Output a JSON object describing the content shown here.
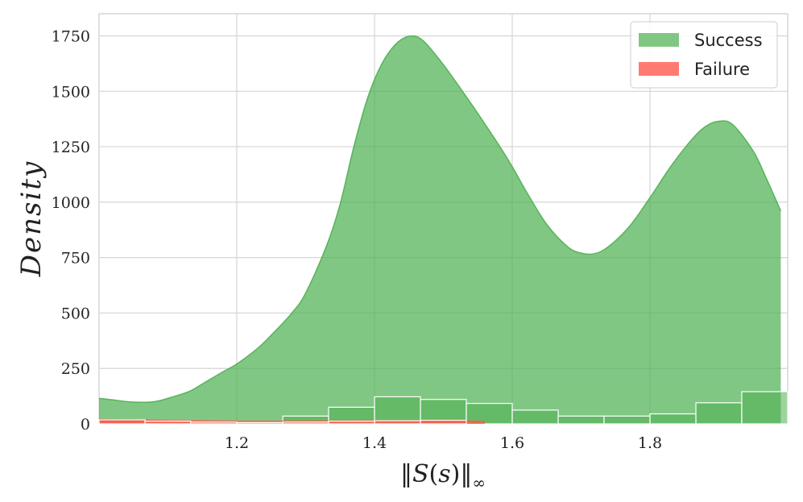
{
  "chart_data": {
    "type": "area",
    "xlabel_parts": [
      "‖",
      "S",
      "(",
      "s",
      ")",
      "‖",
      "∞"
    ],
    "ylabel": "Density",
    "xlim": [
      1.0,
      2.0
    ],
    "ylim": [
      0,
      1850
    ],
    "xticks": [
      1.2,
      1.4,
      1.6,
      1.8
    ],
    "xtick_labels": [
      "1.2",
      "1.4",
      "1.6",
      "1.8"
    ],
    "yticks": [
      0,
      250,
      500,
      750,
      1000,
      1250,
      1500,
      1750
    ],
    "ytick_labels": [
      "0",
      "250",
      "500",
      "750",
      "1000",
      "1250",
      "1500",
      "1750"
    ],
    "grid": true,
    "legend_position": "top-right",
    "series": [
      {
        "name": "Success",
        "color": "#4caf50",
        "kde": {
          "x": [
            1.0,
            1.02,
            1.05,
            1.08,
            1.1,
            1.13,
            1.15,
            1.18,
            1.2,
            1.23,
            1.25,
            1.28,
            1.3,
            1.33,
            1.35,
            1.37,
            1.39,
            1.41,
            1.43,
            1.45,
            1.47,
            1.5,
            1.53,
            1.55,
            1.58,
            1.6,
            1.62,
            1.65,
            1.68,
            1.7,
            1.72,
            1.74,
            1.77,
            1.8,
            1.83,
            1.86,
            1.88,
            1.9,
            1.92,
            1.95,
            1.97,
            1.99
          ],
          "y": [
            115,
            108,
            98,
            100,
            115,
            145,
            180,
            235,
            270,
            340,
            400,
            500,
            590,
            800,
            990,
            1250,
            1470,
            1620,
            1710,
            1748,
            1730,
            1620,
            1490,
            1400,
            1260,
            1160,
            1050,
            900,
            800,
            770,
            768,
            800,
            890,
            1020,
            1160,
            1280,
            1340,
            1365,
            1350,
            1230,
            1100,
            960
          ]
        },
        "hist": {
          "bin_edges": [
            1.0,
            1.0667,
            1.1333,
            1.2,
            1.2667,
            1.3333,
            1.4,
            1.4667,
            1.5333,
            1.6,
            1.6667,
            1.7333,
            1.8,
            1.8667,
            1.9333,
            2.0
          ],
          "counts": [
            0,
            0,
            0,
            0,
            35,
            75,
            122,
            110,
            92,
            62,
            35,
            35,
            45,
            95,
            145
          ]
        }
      },
      {
        "name": "Failure",
        "color": "#ff5a4d",
        "kde": {
          "x": [
            1.0,
            1.05,
            1.1,
            1.2,
            1.3,
            1.4,
            1.5,
            1.56
          ],
          "y": [
            20,
            18,
            15,
            12,
            12,
            14,
            14,
            10
          ]
        },
        "hist": {
          "bin_edges": [
            1.0,
            1.0667,
            1.1333,
            1.2,
            1.2667,
            1.3333,
            1.4,
            1.4667,
            1.5333
          ],
          "counts": [
            18,
            12,
            8,
            6,
            8,
            12,
            14,
            16
          ]
        }
      }
    ]
  }
}
